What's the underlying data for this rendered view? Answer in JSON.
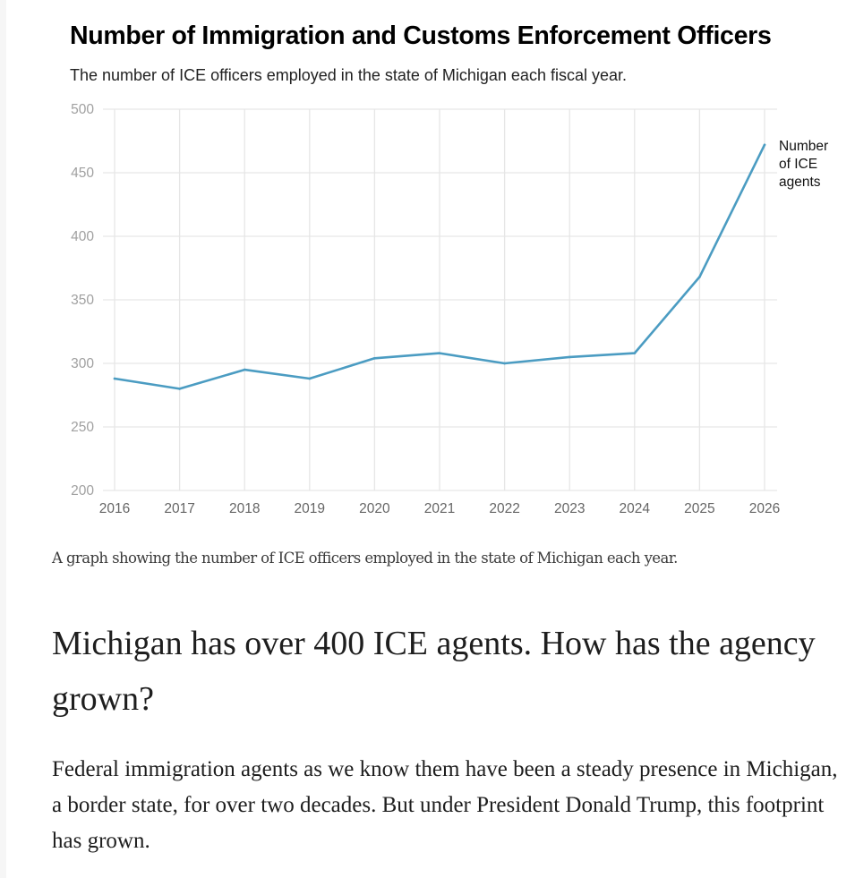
{
  "chart_data": {
    "type": "line",
    "title": "Number of Immigration and Customs Enforcement Officers",
    "subtitle": "The number of ICE officers employed in the state of Michigan each fiscal year.",
    "xlabel": "",
    "ylabel": "",
    "x": [
      "2016",
      "2017",
      "2018",
      "2019",
      "2020",
      "2021",
      "2022",
      "2023",
      "2024",
      "2025",
      "2026"
    ],
    "series": [
      {
        "name": "Number of ICE agents",
        "label_lines": [
          "Number",
          "of ICE",
          "agents"
        ],
        "color": "#4b9cc2",
        "values": [
          288,
          280,
          295,
          288,
          304,
          308,
          300,
          305,
          308,
          368,
          472
        ]
      }
    ],
    "ylim": [
      200,
      500
    ],
    "yticks": [
      "200",
      "250",
      "300",
      "350",
      "400",
      "450",
      "500"
    ],
    "grid": true,
    "legend": "direct-label-right"
  },
  "article": {
    "caption": "A graph showing the number of ICE officers employed in the state of Michigan each year.",
    "headline": "Michigan has over 400 ICE agents. How has the agency grown?",
    "paragraph": "Federal immigration agents as we know them have been a steady presence in Michigan, a border state, for over two decades. But under President Donald Trump, this footprint has grown."
  }
}
